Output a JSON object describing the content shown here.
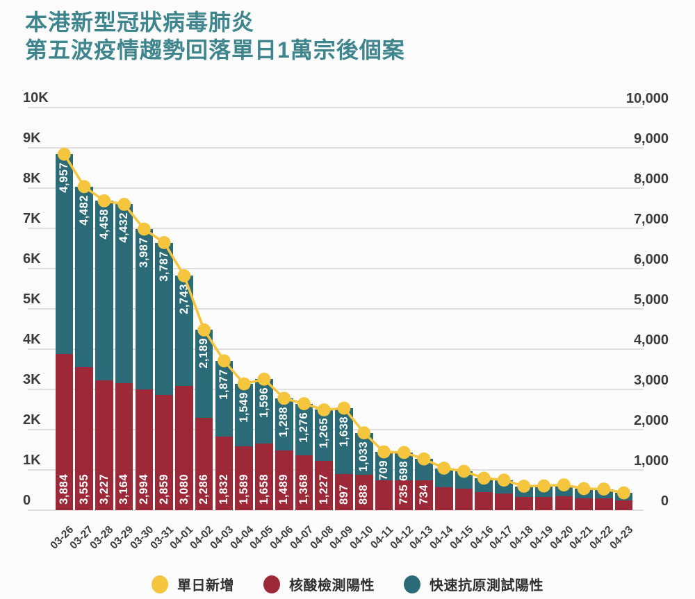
{
  "title": {
    "line1": "本港新型冠狀病毒肺炎",
    "line2": "第五波疫情趨勢回落單日1萬宗後個案"
  },
  "colors": {
    "red": "#9C2838",
    "teal": "#2B6B78",
    "yellow": "#F5C53E",
    "title": "#3F858D",
    "axis_text": "#3A3A3A",
    "date_text": "#3D3D3D",
    "grid": "#DEDEDE",
    "bar_label": "#FFFFFF",
    "background": "#FCFCFC"
  },
  "legend": {
    "items": [
      {
        "id": "daily_new",
        "color": "yellow",
        "label": "單日新增"
      },
      {
        "id": "pcr_positive",
        "color": "red",
        "label": "核酸檢測陽性"
      },
      {
        "id": "rat_positive",
        "color": "teal",
        "label": "快速抗原測試陽性"
      }
    ]
  },
  "chart_data": {
    "type": "bar",
    "variant": "stacked-bars-with-line-overlay",
    "title": "本港新型冠狀病毒肺炎 第五波疫情趨勢回落單日1萬宗後個案",
    "grid": true,
    "legend_position": "bottom",
    "ylim": [
      0,
      10000
    ],
    "yticks": [
      {
        "value": 10000,
        "left": "10K",
        "right": "10,000"
      },
      {
        "value": 9000,
        "left": "9K",
        "right": "9,000"
      },
      {
        "value": 8000,
        "left": "8K",
        "right": "8,000"
      },
      {
        "value": 7000,
        "left": "7K",
        "right": "7,000"
      },
      {
        "value": 6000,
        "left": "6K",
        "right": "6,000"
      },
      {
        "value": 5000,
        "left": "5K",
        "right": "5,000"
      },
      {
        "value": 4000,
        "left": "4K",
        "right": "4,000"
      },
      {
        "value": 3000,
        "left": "3K",
        "right": "3,000"
      },
      {
        "value": 2000,
        "left": "2K",
        "right": "2,000"
      },
      {
        "value": 1000,
        "left": "1K",
        "right": "1,000"
      },
      {
        "value": 0,
        "left": "0",
        "right": "0"
      }
    ],
    "categories": [
      "03-26",
      "03-27",
      "03-28",
      "03-29",
      "03-30",
      "03-31",
      "04-01",
      "04-02",
      "04-03",
      "04-04",
      "04-05",
      "04-06",
      "04-07",
      "04-08",
      "04-09",
      "04-10",
      "04-11",
      "04-12",
      "04-13",
      "04-14",
      "04-15",
      "04-16",
      "04-17",
      "04-18",
      "04-19",
      "04-20",
      "04-21",
      "04-22",
      "04-23"
    ],
    "series": [
      {
        "name": "核酸檢測陽性",
        "color_key": "red",
        "values": [
          3884,
          3555,
          3227,
          3164,
          2994,
          2859,
          3080,
          2286,
          1832,
          1589,
          1658,
          1489,
          1368,
          1227,
          897,
          888,
          738,
          735,
          734,
          570,
          530,
          440,
          415,
          330,
          335,
          350,
          300,
          295,
          245
        ],
        "labels": [
          "3,884",
          "3,555",
          "3,227",
          "3,164",
          "2,994",
          "2,859",
          "3,080",
          "2,286",
          "1,832",
          "1,589",
          "1,658",
          "1,489",
          "1,368",
          "1,227",
          "897",
          "888",
          null,
          "735",
          "734",
          null,
          null,
          null,
          null,
          null,
          null,
          null,
          null,
          null,
          null
        ]
      },
      {
        "name": "快速抗原測試陽性",
        "color_key": "teal",
        "values": [
          4957,
          4482,
          4458,
          4432,
          3987,
          3787,
          2743,
          2189,
          1877,
          1549,
          1596,
          1288,
          1276,
          1265,
          1638,
          1033,
          709,
          698,
          538,
          473,
          435,
          354,
          332,
          264,
          267,
          278,
          234,
          229,
          184
        ],
        "labels": [
          "4,957",
          "4,482",
          "4,458",
          "4,432",
          "3,987",
          "3,787",
          "2,743",
          "2,189",
          "1,877",
          "1,549",
          "1,596",
          "1,288",
          "1,276",
          "1,265",
          "1,638",
          "1,033",
          "709",
          "698",
          null,
          null,
          null,
          null,
          null,
          null,
          null,
          null,
          null,
          null,
          null
        ]
      }
    ],
    "line": {
      "name": "單日新增",
      "color_key": "yellow",
      "values": [
        8841,
        8037,
        7685,
        7596,
        6981,
        6646,
        5823,
        4475,
        3709,
        3138,
        3254,
        2777,
        2644,
        2492,
        2535,
        1921,
        1447,
        1433,
        1272,
        1043,
        965,
        794,
        747,
        594,
        602,
        628,
        534,
        524,
        429
      ]
    }
  }
}
